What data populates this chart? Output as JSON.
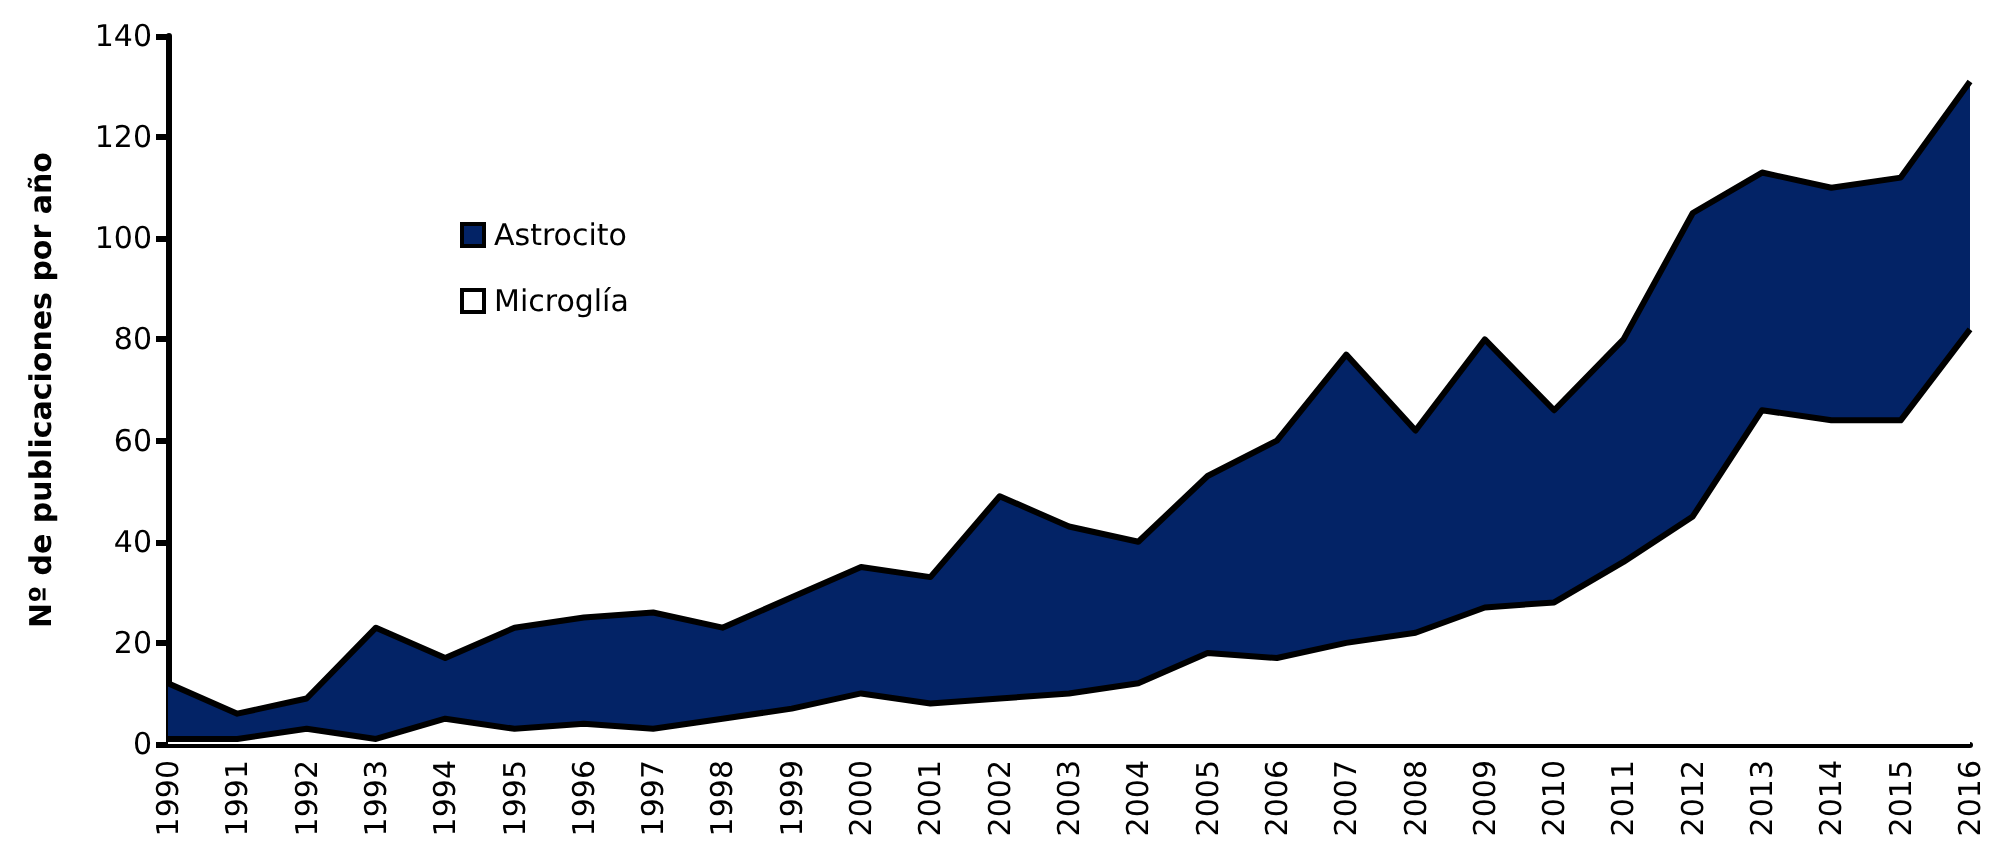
{
  "chart_data": {
    "type": "area",
    "ylabel": "Nº de publicaciones por año",
    "categories": [
      "1990",
      "1991",
      "1992",
      "1993",
      "1994",
      "1995",
      "1996",
      "1997",
      "1998",
      "1999",
      "2000",
      "2001",
      "2002",
      "2003",
      "2004",
      "2005",
      "2006",
      "2007",
      "2008",
      "2009",
      "2010",
      "2011",
      "2012",
      "2013",
      "2014",
      "2015",
      "2016"
    ],
    "series": [
      {
        "name": "Astrocito",
        "color": "#032366",
        "values": [
          12,
          6,
          9,
          23,
          17,
          23,
          25,
          26,
          23,
          29,
          35,
          33,
          49,
          43,
          40,
          53,
          60,
          77,
          62,
          80,
          66,
          80,
          105,
          113,
          110,
          112,
          131
        ]
      },
      {
        "name": "Microglía",
        "color": "#ffffff",
        "values": [
          1,
          1,
          3,
          1,
          5,
          3,
          4,
          3,
          5,
          7,
          10,
          8,
          9,
          10,
          12,
          18,
          17,
          20,
          22,
          27,
          28,
          36,
          45,
          66,
          64,
          64,
          82
        ]
      }
    ],
    "ylim": [
      0,
      140
    ],
    "yticks": [
      0,
      20,
      40,
      60,
      80,
      100,
      120,
      140
    ],
    "grid": false,
    "legend": "top left",
    "marker": "none",
    "line_style": "solid"
  }
}
